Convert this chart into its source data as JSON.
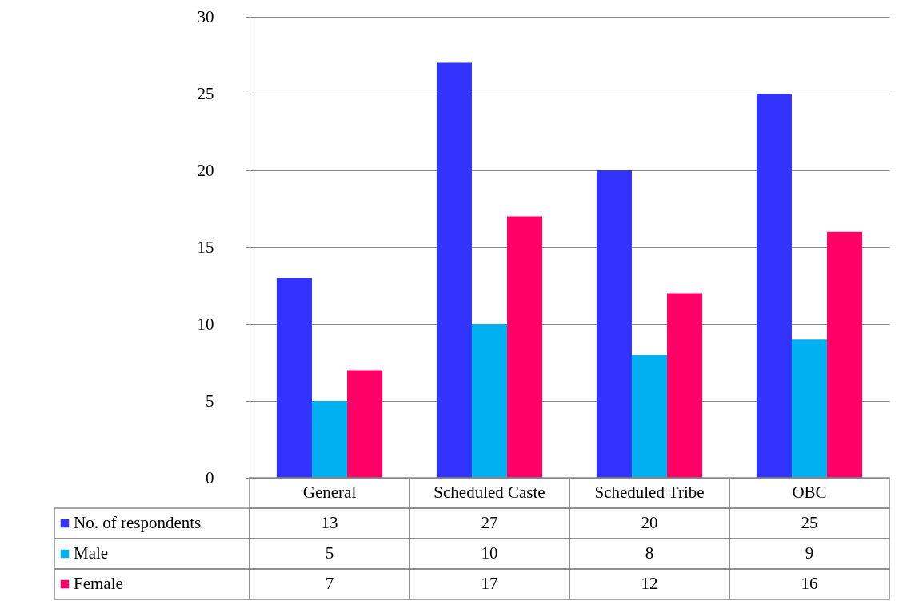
{
  "chart_data": {
    "type": "bar",
    "categories": [
      "General",
      "Scheduled Caste",
      "Scheduled Tribe",
      "OBC"
    ],
    "series": [
      {
        "name": "No. of respondents",
        "color": "#3333ff",
        "values": [
          13,
          27,
          20,
          25
        ]
      },
      {
        "name": "Male",
        "color": "#00b0f0",
        "values": [
          5,
          10,
          8,
          9
        ]
      },
      {
        "name": "Female",
        "color": "#ff0066",
        "values": [
          7,
          17,
          12,
          16
        ]
      }
    ],
    "ylim": [
      0,
      30
    ],
    "yticks": [
      0,
      5,
      10,
      15,
      20,
      25,
      30
    ],
    "grid": "y",
    "legend": "bottom",
    "data_labels": true
  }
}
